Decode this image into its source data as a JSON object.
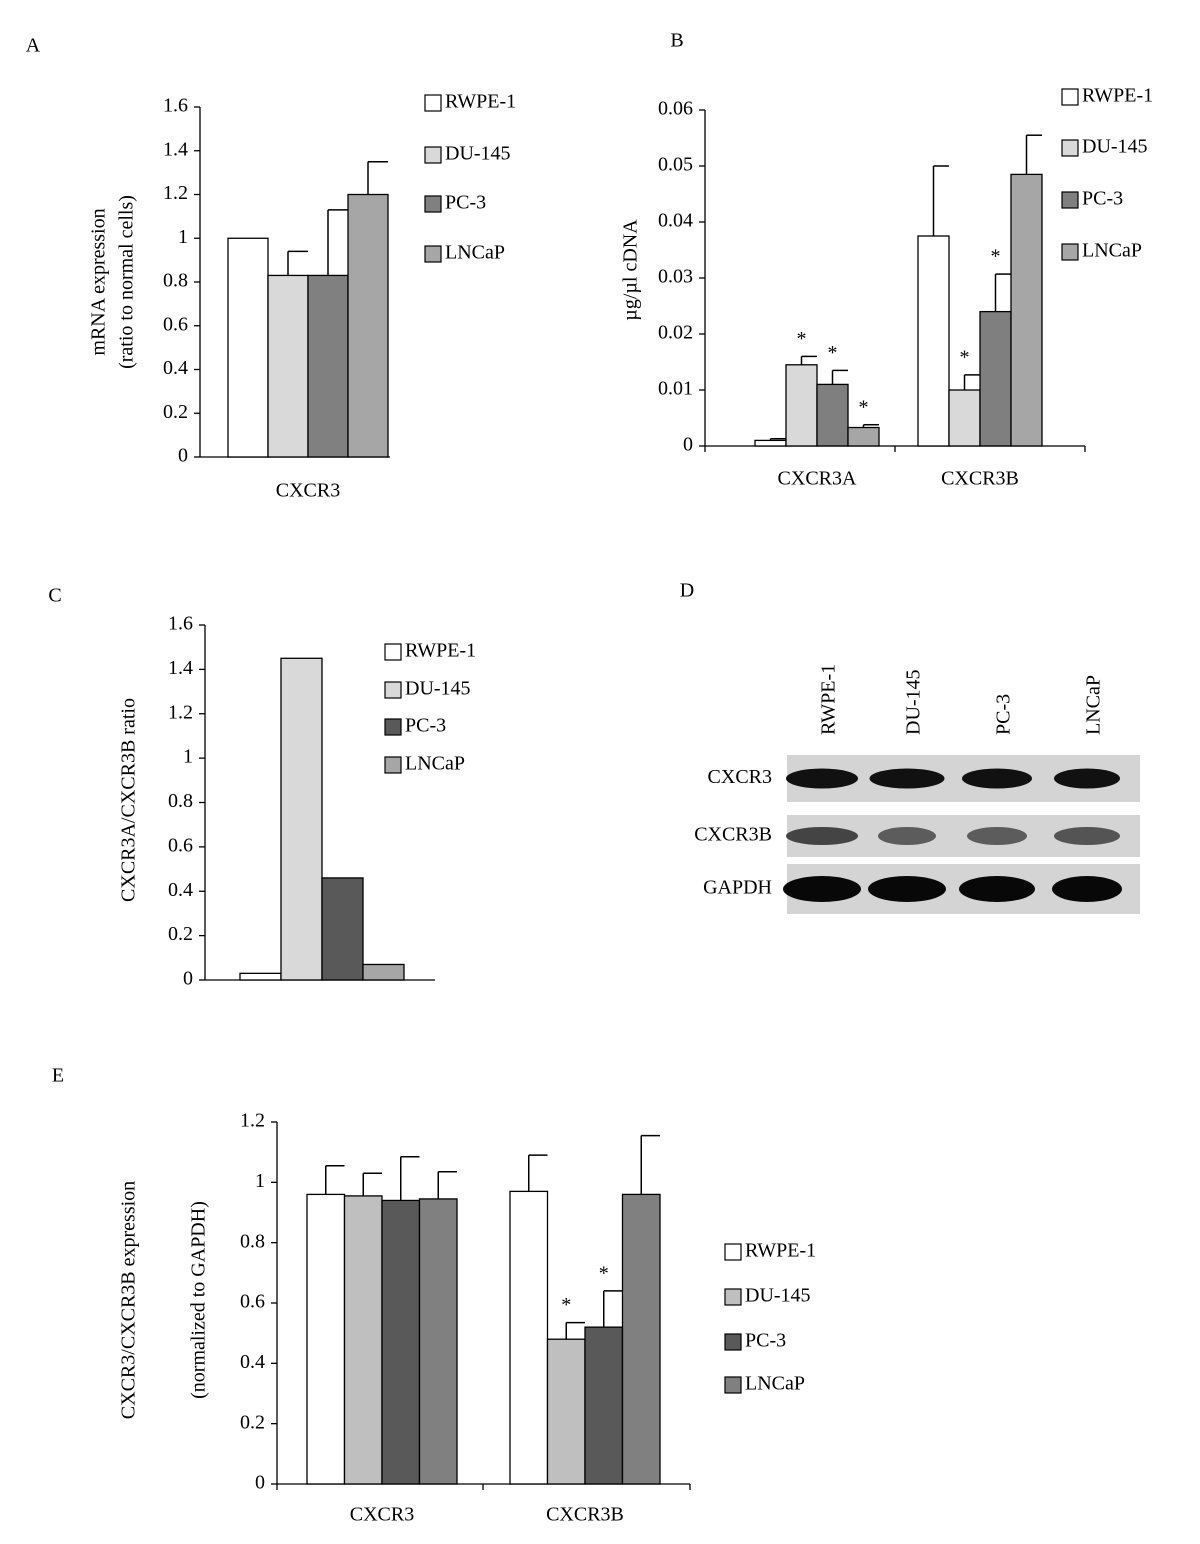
{
  "chart_data": [
    {
      "type": "bar",
      "panel": "A",
      "ylabel": [
        "mRNA expression",
        "(ratio to normal cells)"
      ],
      "categories": [
        "CXCR3"
      ],
      "ylim": [
        0,
        1.6
      ],
      "yticks": [
        0,
        0.2,
        0.4,
        0.6,
        0.8,
        1,
        1.2,
        1.4,
        1.6
      ],
      "legend": "right",
      "series": [
        {
          "name": "RWPE-1",
          "color": "#ffffff",
          "values": [
            1.0
          ]
        },
        {
          "name": "DU-145",
          "color": "#d9d9d9",
          "values": [
            0.83
          ],
          "errors": [
            0.11
          ]
        },
        {
          "name": "PC-3",
          "color": "#808080",
          "values": [
            0.83
          ],
          "errors": [
            0.3
          ]
        },
        {
          "name": "LNCaP",
          "color": "#a6a6a6",
          "values": [
            1.2
          ],
          "errors": [
            0.15
          ]
        }
      ]
    },
    {
      "type": "bar",
      "panel": "B",
      "ylabel": "µg/µl cDNA",
      "categories": [
        "CXCR3A",
        "CXCR3B"
      ],
      "ylim": [
        0,
        0.06
      ],
      "yticks": [
        0,
        0.01,
        0.02,
        0.03,
        0.04,
        0.05,
        0.06
      ],
      "legend": "right",
      "series": [
        {
          "name": "RWPE-1",
          "color": "#ffffff",
          "values": [
            0.001,
            0.0375
          ],
          "errors": [
            0.0003,
            0.0125
          ]
        },
        {
          "name": "DU-145",
          "color": "#d9d9d9",
          "values": [
            0.0145,
            0.01
          ],
          "errors": [
            0.0015,
            0.0027
          ],
          "annotations": [
            "*",
            "*"
          ]
        },
        {
          "name": "PC-3",
          "color": "#7f7f7f",
          "values": [
            0.011,
            0.024
          ],
          "errors": [
            0.0025,
            0.0067
          ],
          "annotations": [
            "*",
            "*"
          ]
        },
        {
          "name": "LNCaP",
          "color": "#a6a6a6",
          "values": [
            0.0033,
            0.0485
          ],
          "errors": [
            0.0005,
            0.007
          ],
          "annotations": [
            "*",
            null
          ]
        }
      ]
    },
    {
      "type": "bar",
      "panel": "C",
      "ylabel": "CXCR3A/CXCR3B ratio",
      "categories": [
        null
      ],
      "ylim": [
        0,
        1.6
      ],
      "yticks": [
        0,
        0.2,
        0.4,
        0.6,
        0.8,
        1,
        1.2,
        1.4,
        1.6
      ],
      "legend": "right",
      "series": [
        {
          "name": "RWPE-1",
          "color": "#ffffff",
          "values": [
            0.03
          ]
        },
        {
          "name": "DU-145",
          "color": "#d9d9d9",
          "values": [
            1.45
          ]
        },
        {
          "name": "PC-3",
          "color": "#595959",
          "values": [
            0.46
          ]
        },
        {
          "name": "LNCaP",
          "color": "#a6a6a6",
          "values": [
            0.07
          ]
        }
      ]
    },
    {
      "type": "bar",
      "panel": "E",
      "ylabel": [
        "CXCR3/CXCR3B  expression",
        "(normalized to GAPDH)"
      ],
      "categories": [
        "CXCR3",
        "CXCR3B"
      ],
      "ylim": [
        0,
        1.2
      ],
      "yticks": [
        0,
        0.2,
        0.4,
        0.6,
        0.8,
        1,
        1.2
      ],
      "legend": "right",
      "series": [
        {
          "name": "RWPE-1",
          "color": "#ffffff",
          "values": [
            0.96,
            0.97
          ],
          "errors": [
            0.095,
            0.12
          ]
        },
        {
          "name": "DU-145",
          "color": "#bfbfbf",
          "values": [
            0.955,
            0.48
          ],
          "errors": [
            0.075,
            0.055
          ],
          "annotations": [
            null,
            "*"
          ]
        },
        {
          "name": "PC-3",
          "color": "#595959",
          "values": [
            0.94,
            0.52
          ],
          "errors": [
            0.145,
            0.12
          ],
          "annotations": [
            null,
            "*"
          ]
        },
        {
          "name": "LNCaP",
          "color": "#808080",
          "values": [
            0.945,
            0.96
          ],
          "errors": [
            0.09,
            0.195
          ]
        }
      ]
    }
  ],
  "blot": {
    "panel": "D",
    "lanes": [
      "RWPE-1",
      "DU-145",
      "PC-3",
      "LNCaP"
    ],
    "rows": [
      "CXCR3",
      "CXCR3B",
      "GAPDH"
    ]
  }
}
